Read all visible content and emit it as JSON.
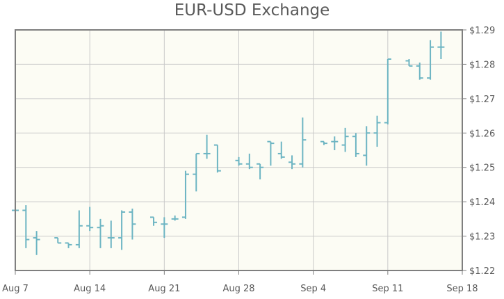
{
  "chart_data": {
    "type": "ohlc",
    "title": "EUR-USD Exchange",
    "xlabel": "",
    "ylabel": "",
    "ylim": [
      1.22,
      1.29
    ],
    "xlim": [
      "2006-08-07",
      "2006-09-18"
    ],
    "y_ticks": [
      "$1.22",
      "$1.23",
      "$1.24",
      "$1.25",
      "$1.26",
      "$1.27",
      "$1.28",
      "$1.29"
    ],
    "y_tick_values": [
      1.22,
      1.23,
      1.24,
      1.25,
      1.26,
      1.27,
      1.28,
      1.29
    ],
    "x_ticks": [
      "Aug 7",
      "Aug 14",
      "Aug 21",
      "Aug 28",
      "Sep 4",
      "Sep 11",
      "Sep 18"
    ],
    "x_tick_dates": [
      "2006-08-07",
      "2006-08-14",
      "2006-08-21",
      "2006-08-28",
      "2006-09-04",
      "2006-09-11",
      "2006-09-18"
    ],
    "grid": true,
    "colors": {
      "bars": "#6db5c3",
      "plot_background": "#fcfcf4",
      "grid": "#c9c9c9",
      "border": "#7f7f7f"
    },
    "series": [
      {
        "points": [
          {
            "date": "2006-08-07",
            "open": 1.2375,
            "high": 1.2405,
            "low": 1.233,
            "close": 1.2375
          },
          {
            "date": "2006-08-08",
            "open": 1.2375,
            "high": 1.239,
            "low": 1.2265,
            "close": 1.229
          },
          {
            "date": "2006-08-09",
            "open": 1.2295,
            "high": 1.2315,
            "low": 1.2245,
            "close": 1.229
          },
          {
            "date": "2006-08-11",
            "open": 1.2295,
            "high": 1.2295,
            "low": 1.228,
            "close": 1.228
          },
          {
            "date": "2006-08-12",
            "open": 1.228,
            "high": 1.228,
            "low": 1.2265,
            "close": 1.2275
          },
          {
            "date": "2006-08-13",
            "open": 1.2275,
            "high": 1.2375,
            "low": 1.2265,
            "close": 1.233
          },
          {
            "date": "2006-08-14",
            "open": 1.233,
            "high": 1.2385,
            "low": 1.2315,
            "close": 1.2325
          },
          {
            "date": "2006-08-15",
            "open": 1.2325,
            "high": 1.235,
            "low": 1.2265,
            "close": 1.233
          },
          {
            "date": "2006-08-16",
            "open": 1.2295,
            "high": 1.2345,
            "low": 1.2265,
            "close": 1.2295
          },
          {
            "date": "2006-08-17",
            "open": 1.2295,
            "high": 1.2375,
            "low": 1.226,
            "close": 1.237
          },
          {
            "date": "2006-08-18",
            "open": 1.237,
            "high": 1.238,
            "low": 1.229,
            "close": 1.2335
          },
          {
            "date": "2006-08-20",
            "open": 1.2355,
            "high": 1.2355,
            "low": 1.233,
            "close": 1.234
          },
          {
            "date": "2006-08-21",
            "open": 1.2335,
            "high": 1.2355,
            "low": 1.2295,
            "close": 1.2335
          },
          {
            "date": "2006-08-22",
            "open": 1.235,
            "high": 1.236,
            "low": 1.2345,
            "close": 1.235
          },
          {
            "date": "2006-08-23",
            "open": 1.2355,
            "high": 1.249,
            "low": 1.235,
            "close": 1.248
          },
          {
            "date": "2006-08-24",
            "open": 1.248,
            "high": 1.254,
            "low": 1.243,
            "close": 1.254
          },
          {
            "date": "2006-08-25",
            "open": 1.254,
            "high": 1.2595,
            "low": 1.2525,
            "close": 1.254
          },
          {
            "date": "2006-08-26",
            "open": 1.2565,
            "high": 1.2565,
            "low": 1.2485,
            "close": 1.249
          },
          {
            "date": "2006-08-28",
            "open": 1.252,
            "high": 1.253,
            "low": 1.2505,
            "close": 1.251
          },
          {
            "date": "2006-08-29",
            "open": 1.251,
            "high": 1.254,
            "low": 1.2495,
            "close": 1.25
          },
          {
            "date": "2006-08-30",
            "open": 1.251,
            "high": 1.251,
            "low": 1.2465,
            "close": 1.25
          },
          {
            "date": "2006-08-31",
            "open": 1.2575,
            "high": 1.2575,
            "low": 1.2505,
            "close": 1.257
          },
          {
            "date": "2006-09-01",
            "open": 1.254,
            "high": 1.2575,
            "low": 1.2525,
            "close": 1.253
          },
          {
            "date": "2006-09-02",
            "open": 1.2515,
            "high": 1.2535,
            "low": 1.2495,
            "close": 1.251
          },
          {
            "date": "2006-09-03",
            "open": 1.251,
            "high": 1.2645,
            "low": 1.25,
            "close": 1.258
          },
          {
            "date": "2006-09-05",
            "open": 1.2575,
            "high": 1.2575,
            "low": 1.2565,
            "close": 1.257
          },
          {
            "date": "2006-09-06",
            "open": 1.2575,
            "high": 1.259,
            "low": 1.255,
            "close": 1.2575
          },
          {
            "date": "2006-09-07",
            "open": 1.2565,
            "high": 1.2615,
            "low": 1.2545,
            "close": 1.259
          },
          {
            "date": "2006-09-08",
            "open": 1.259,
            "high": 1.26,
            "low": 1.253,
            "close": 1.254
          },
          {
            "date": "2006-09-09",
            "open": 1.2535,
            "high": 1.262,
            "low": 1.2505,
            "close": 1.26
          },
          {
            "date": "2006-09-10",
            "open": 1.26,
            "high": 1.265,
            "low": 1.256,
            "close": 1.263
          },
          {
            "date": "2006-09-11",
            "open": 1.263,
            "high": 1.2815,
            "low": 1.2625,
            "close": 1.2815
          },
          {
            "date": "2006-09-13",
            "open": 1.281,
            "high": 1.2815,
            "low": 1.2795,
            "close": 1.2795
          },
          {
            "date": "2006-09-14",
            "open": 1.2795,
            "high": 1.2805,
            "low": 1.2755,
            "close": 1.276
          },
          {
            "date": "2006-09-15",
            "open": 1.276,
            "high": 1.287,
            "low": 1.2755,
            "close": 1.285
          },
          {
            "date": "2006-09-16",
            "open": 1.285,
            "high": 1.2895,
            "low": 1.2815,
            "close": 1.285
          }
        ]
      }
    ]
  }
}
